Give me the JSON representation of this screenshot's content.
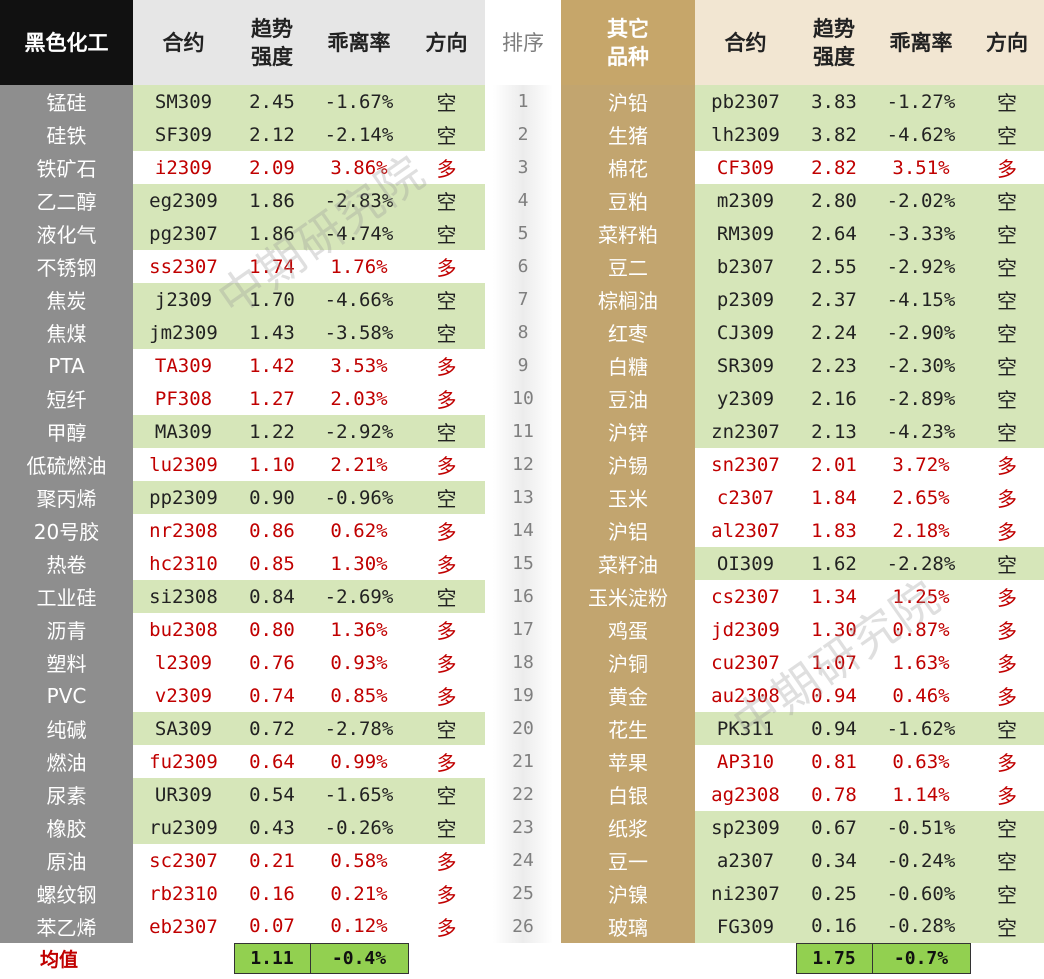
{
  "header_left": {
    "category": "黑色化工",
    "contract": "合约",
    "trend_line1": "趋势",
    "trend_line2": "强度",
    "deviation": "乖离率",
    "direction": "方向"
  },
  "header_rank": "排序",
  "header_right": {
    "category_line1": "其它",
    "category_line2": "品种",
    "contract": "合约",
    "trend_line1": "趋势",
    "trend_line2": "强度",
    "deviation": "乖离率",
    "direction": "方向"
  },
  "left_rows": [
    {
      "name": "锰硅",
      "contract": "SM309",
      "trend": "2.45",
      "deviation": "-1.67%",
      "direction": "空"
    },
    {
      "name": "硅铁",
      "contract": "SF309",
      "trend": "2.12",
      "deviation": "-2.14%",
      "direction": "空"
    },
    {
      "name": "铁矿石",
      "contract": "i2309",
      "trend": "2.09",
      "deviation": "3.86%",
      "direction": "多"
    },
    {
      "name": "乙二醇",
      "contract": "eg2309",
      "trend": "1.86",
      "deviation": "-2.83%",
      "direction": "空"
    },
    {
      "name": "液化气",
      "contract": "pg2307",
      "trend": "1.86",
      "deviation": "-4.74%",
      "direction": "空"
    },
    {
      "name": "不锈钢",
      "contract": "ss2307",
      "trend": "1.74",
      "deviation": "1.76%",
      "direction": "多"
    },
    {
      "name": "焦炭",
      "contract": "j2309",
      "trend": "1.70",
      "deviation": "-4.66%",
      "direction": "空"
    },
    {
      "name": "焦煤",
      "contract": "jm2309",
      "trend": "1.43",
      "deviation": "-3.58%",
      "direction": "空"
    },
    {
      "name": "PTA",
      "contract": "TA309",
      "trend": "1.42",
      "deviation": "3.53%",
      "direction": "多"
    },
    {
      "name": "短纤",
      "contract": "PF308",
      "trend": "1.27",
      "deviation": "2.03%",
      "direction": "多"
    },
    {
      "name": "甲醇",
      "contract": "MA309",
      "trend": "1.22",
      "deviation": "-2.92%",
      "direction": "空"
    },
    {
      "name": "低硫燃油",
      "contract": "lu2309",
      "trend": "1.10",
      "deviation": "2.21%",
      "direction": "多"
    },
    {
      "name": "聚丙烯",
      "contract": "pp2309",
      "trend": "0.90",
      "deviation": "-0.96%",
      "direction": "空"
    },
    {
      "name": "20号胶",
      "contract": "nr2308",
      "trend": "0.86",
      "deviation": "0.62%",
      "direction": "多"
    },
    {
      "name": "热卷",
      "contract": "hc2310",
      "trend": "0.85",
      "deviation": "1.30%",
      "direction": "多"
    },
    {
      "name": "工业硅",
      "contract": "si2308",
      "trend": "0.84",
      "deviation": "-2.69%",
      "direction": "空"
    },
    {
      "name": "沥青",
      "contract": "bu2308",
      "trend": "0.80",
      "deviation": "1.36%",
      "direction": "多"
    },
    {
      "name": "塑料",
      "contract": "l2309",
      "trend": "0.76",
      "deviation": "0.93%",
      "direction": "多"
    },
    {
      "name": "PVC",
      "contract": "v2309",
      "trend": "0.74",
      "deviation": "0.85%",
      "direction": "多"
    },
    {
      "name": "纯碱",
      "contract": "SA309",
      "trend": "0.72",
      "deviation": "-2.78%",
      "direction": "空"
    },
    {
      "name": "燃油",
      "contract": "fu2309",
      "trend": "0.64",
      "deviation": "0.99%",
      "direction": "多"
    },
    {
      "name": "尿素",
      "contract": "UR309",
      "trend": "0.54",
      "deviation": "-1.65%",
      "direction": "空"
    },
    {
      "name": "橡胶",
      "contract": "ru2309",
      "trend": "0.43",
      "deviation": "-0.26%",
      "direction": "空"
    },
    {
      "name": "原油",
      "contract": "sc2307",
      "trend": "0.21",
      "deviation": "0.58%",
      "direction": "多"
    },
    {
      "name": "螺纹钢",
      "contract": "rb2310",
      "trend": "0.16",
      "deviation": "0.21%",
      "direction": "多"
    },
    {
      "name": "苯乙烯",
      "contract": "eb2307",
      "trend": "0.07",
      "deviation": "0.12%",
      "direction": "多"
    }
  ],
  "ranks": [
    "1",
    "2",
    "3",
    "4",
    "5",
    "6",
    "7",
    "8",
    "9",
    "10",
    "11",
    "12",
    "13",
    "14",
    "15",
    "16",
    "17",
    "18",
    "19",
    "20",
    "21",
    "22",
    "23",
    "24",
    "25",
    "26"
  ],
  "right_rows": [
    {
      "name": "沪铅",
      "contract": "pb2307",
      "trend": "3.83",
      "deviation": "-1.27%",
      "direction": "空"
    },
    {
      "name": "生猪",
      "contract": "lh2309",
      "trend": "3.82",
      "deviation": "-4.62%",
      "direction": "空"
    },
    {
      "name": "棉花",
      "contract": "CF309",
      "trend": "2.82",
      "deviation": "3.51%",
      "direction": "多"
    },
    {
      "name": "豆粕",
      "contract": "m2309",
      "trend": "2.80",
      "deviation": "-2.02%",
      "direction": "空"
    },
    {
      "name": "菜籽粕",
      "contract": "RM309",
      "trend": "2.64",
      "deviation": "-3.33%",
      "direction": "空"
    },
    {
      "name": "豆二",
      "contract": "b2307",
      "trend": "2.55",
      "deviation": "-2.92%",
      "direction": "空"
    },
    {
      "name": "棕榈油",
      "contract": "p2309",
      "trend": "2.37",
      "deviation": "-4.15%",
      "direction": "空"
    },
    {
      "name": "红枣",
      "contract": "CJ309",
      "trend": "2.24",
      "deviation": "-2.90%",
      "direction": "空"
    },
    {
      "name": "白糖",
      "contract": "SR309",
      "trend": "2.23",
      "deviation": "-2.30%",
      "direction": "空"
    },
    {
      "name": "豆油",
      "contract": "y2309",
      "trend": "2.16",
      "deviation": "-2.89%",
      "direction": "空"
    },
    {
      "name": "沪锌",
      "contract": "zn2307",
      "trend": "2.13",
      "deviation": "-4.23%",
      "direction": "空"
    },
    {
      "name": "沪锡",
      "contract": "sn2307",
      "trend": "2.01",
      "deviation": "3.72%",
      "direction": "多"
    },
    {
      "name": "玉米",
      "contract": "c2307",
      "trend": "1.84",
      "deviation": "2.65%",
      "direction": "多"
    },
    {
      "name": "沪铝",
      "contract": "al2307",
      "trend": "1.83",
      "deviation": "2.18%",
      "direction": "多"
    },
    {
      "name": "菜籽油",
      "contract": "OI309",
      "trend": "1.62",
      "deviation": "-2.28%",
      "direction": "空"
    },
    {
      "name": "玉米淀粉",
      "contract": "cs2307",
      "trend": "1.34",
      "deviation": "1.25%",
      "direction": "多"
    },
    {
      "name": "鸡蛋",
      "contract": "jd2309",
      "trend": "1.30",
      "deviation": "0.87%",
      "direction": "多"
    },
    {
      "name": "沪铜",
      "contract": "cu2307",
      "trend": "1.07",
      "deviation": "1.63%",
      "direction": "多"
    },
    {
      "name": "黄金",
      "contract": "au2308",
      "trend": "0.94",
      "deviation": "0.46%",
      "direction": "多"
    },
    {
      "name": "花生",
      "contract": "PK311",
      "trend": "0.94",
      "deviation": "-1.62%",
      "direction": "空"
    },
    {
      "name": "苹果",
      "contract": "AP310",
      "trend": "0.81",
      "deviation": "0.63%",
      "direction": "多"
    },
    {
      "name": "白银",
      "contract": "ag2308",
      "trend": "0.78",
      "deviation": "1.14%",
      "direction": "多"
    },
    {
      "name": "纸浆",
      "contract": "sp2309",
      "trend": "0.67",
      "deviation": "-0.51%",
      "direction": "空"
    },
    {
      "name": "豆一",
      "contract": "a2307",
      "trend": "0.34",
      "deviation": "-0.24%",
      "direction": "空"
    },
    {
      "name": "沪镍",
      "contract": "ni2307",
      "trend": "0.25",
      "deviation": "-0.60%",
      "direction": "空"
    },
    {
      "name": "玻璃",
      "contract": "FG309",
      "trend": "0.16",
      "deviation": "-0.28%",
      "direction": "空"
    }
  ],
  "average": {
    "label": "均值",
    "left_trend": "1.11",
    "left_deviation": "-0.4%",
    "right_trend": "1.75",
    "right_deviation": "-0.7%"
  },
  "watermark": "中期研究院",
  "colors": {
    "short_bg": "#d6e6b9",
    "long_text": "#c00000",
    "left_header": "#111111",
    "right_header": "#c6a66a"
  }
}
